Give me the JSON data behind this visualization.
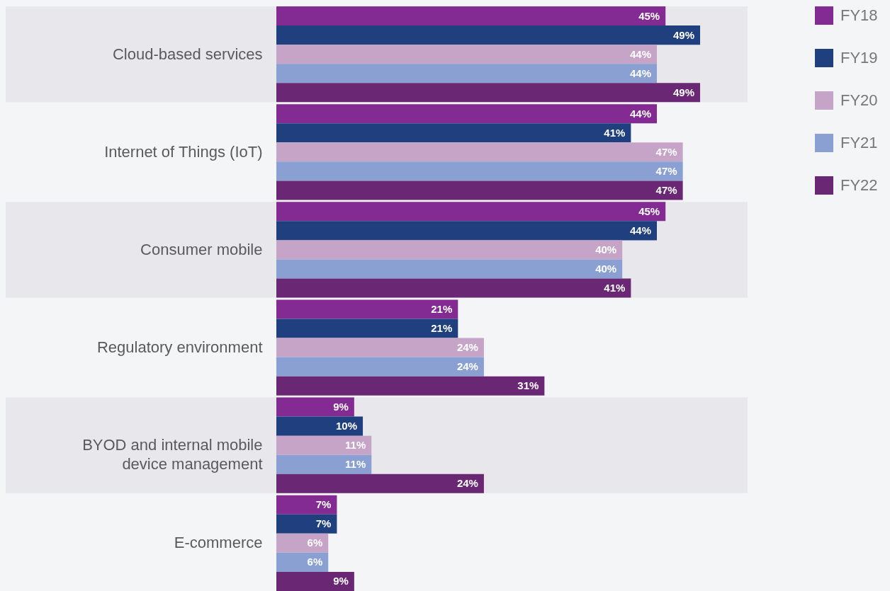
{
  "chart_data": {
    "type": "bar",
    "orientation": "horizontal",
    "categories": [
      "Cloud-based services",
      "Internet of Things (IoT)",
      "Consumer mobile",
      "Regulatory environment",
      "BYOD and internal mobile device management",
      "E-commerce"
    ],
    "series": [
      {
        "name": "FY18",
        "color": "#832a93",
        "values": [
          45,
          44,
          45,
          21,
          9,
          7
        ],
        "value_labels": [
          "45%",
          "44%",
          "45%",
          "21%",
          "9%",
          "7%"
        ]
      },
      {
        "name": "FY19",
        "color": "#1f3f7f",
        "values": [
          49,
          41,
          44,
          21,
          10,
          7
        ],
        "value_labels": [
          "49%",
          "41%",
          "44%",
          "21%",
          "10%",
          "7%"
        ]
      },
      {
        "name": "FY20",
        "color": "#c6a4c8",
        "values": [
          44,
          47,
          40,
          24,
          11,
          6
        ],
        "value_labels": [
          "44%",
          "47%",
          "40%",
          "24%",
          "11%",
          "6%"
        ]
      },
      {
        "name": "FY21",
        "color": "#8a9fd2",
        "values": [
          44,
          47,
          40,
          24,
          11,
          6
        ],
        "value_labels": [
          "44%",
          "47%",
          "40%",
          "24%",
          "11%",
          "6%"
        ]
      },
      {
        "name": "FY22",
        "color": "#6a2773",
        "values": [
          49,
          47,
          41,
          31,
          24,
          9
        ],
        "value_labels": [
          "49%",
          "47%",
          "41%",
          "31%",
          "24%",
          "9%"
        ]
      }
    ],
    "bands": [
      {
        "axis": "y",
        "from": "Cloud-based services",
        "to": "Cloud-based services",
        "color": "#e8e7ec"
      },
      {
        "axis": "y",
        "from": "Consumer mobile",
        "to": "Consumer mobile",
        "color": "#e8e7ec"
      },
      {
        "axis": "y",
        "from": "BYOD and internal mobile device management",
        "to": "BYOD and internal mobile device management",
        "color": "#e8e7ec"
      }
    ],
    "legend": "right"
  }
}
